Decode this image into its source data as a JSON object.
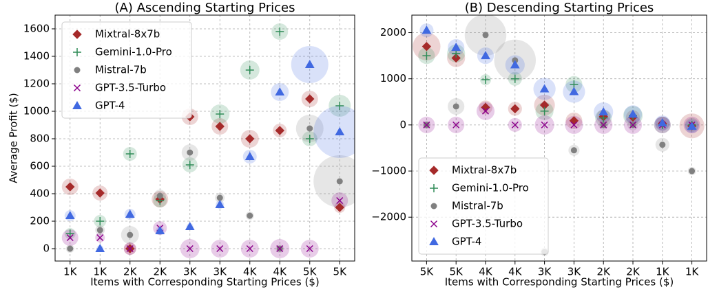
{
  "chart_data": [
    {
      "type": "scatter",
      "title": "(A) Ascending Starting Prices",
      "xlabel": "Items with Corresponding Starting Prices ($)",
      "ylabel": "Average Profit ($)",
      "categories": [
        "1K",
        "1K",
        "2K",
        "2K",
        "3K",
        "3K",
        "4K",
        "4K",
        "5K",
        "5K"
      ],
      "ylim": [
        -90,
        1700
      ],
      "yticks": [
        0,
        200,
        400,
        600,
        800,
        1000,
        1200,
        1400,
        1600
      ],
      "grid": true,
      "legend": "upper left",
      "series": [
        {
          "name": "Mixtral-8x7b",
          "color": "#a52a2a",
          "marker": "diamond",
          "values": [
            450,
            405,
            0,
            360,
            960,
            890,
            800,
            860,
            1090,
            300
          ],
          "errors": [
            60,
            55,
            45,
            60,
            60,
            60,
            65,
            50,
            60,
            40
          ]
        },
        {
          "name": "Gemini-1.0-Pro",
          "color": "#2e8b57",
          "marker": "plus",
          "values": [
            110,
            200,
            690,
            350,
            610,
            980,
            1300,
            1580,
            800,
            1040
          ],
          "errors": [
            40,
            45,
            50,
            50,
            55,
            70,
            70,
            60,
            55,
            80
          ]
        },
        {
          "name": "Mistral-7b",
          "color": "#808080",
          "marker": "circle",
          "values": [
            0,
            135,
            100,
            385,
            700,
            370,
            240,
            0,
            875,
            490
          ],
          "errors": [
            30,
            35,
            65,
            45,
            60,
            35,
            30,
            30,
            100,
            190
          ]
        },
        {
          "name": "GPT-3.5-Turbo",
          "color": "#8b008b",
          "marker": "x",
          "values": [
            80,
            80,
            0,
            150,
            0,
            0,
            0,
            0,
            0,
            350
          ],
          "errors": [
            60,
            35,
            45,
            50,
            70,
            65,
            65,
            70,
            65,
            60
          ]
        },
        {
          "name": "GPT-4",
          "color": "#4169e1",
          "marker": "triangle",
          "values": [
            240,
            0,
            250,
            130,
            160,
            320,
            670,
            1140,
            1340,
            850
          ],
          "errors": [
            40,
            25,
            40,
            30,
            25,
            30,
            50,
            65,
            135,
            190
          ]
        }
      ]
    },
    {
      "type": "scatter",
      "title": "(B) Descending Starting Prices",
      "xlabel": "Items with Corresponding Starting Prices ($)",
      "categories": [
        "5K",
        "5K",
        "4K",
        "4K",
        "3K",
        "3K",
        "2K",
        "2K",
        "1K",
        "1K"
      ],
      "ylim": [
        -2950,
        2380
      ],
      "yticks": [
        {
          "value": -2000,
          "label": "−2000"
        },
        {
          "value": -1000,
          "label": "−1000"
        },
        0,
        1000,
        2000
      ],
      "grid": true,
      "legend": "lower left",
      "series": [
        {
          "name": "Mixtral-8x7b",
          "color": "#a52a2a",
          "marker": "diamond",
          "values": [
            1700,
            1450,
            380,
            350,
            430,
            90,
            180,
            170,
            30,
            -20
          ],
          "errors": [
            300,
            195,
            150,
            150,
            225,
            180,
            150,
            150,
            150,
            270
          ]
        },
        {
          "name": "Gemini-1.0-Pro",
          "color": "#2e8b57",
          "marker": "plus",
          "values": [
            1500,
            1550,
            980,
            1000,
            300,
            880,
            150,
            200,
            0,
            0
          ],
          "errors": [
            180,
            195,
            120,
            150,
            195,
            180,
            180,
            210,
            180,
            150
          ]
        },
        {
          "name": "Mistral-7b",
          "color": "#808080",
          "marker": "circle",
          "values": [
            0,
            400,
            1950,
            1400,
            -2750,
            -550,
            0,
            0,
            -430,
            -1000
          ],
          "errors": [
            90,
            180,
            450,
            450,
            90,
            120,
            105,
            120,
            150,
            90
          ]
        },
        {
          "name": "GPT-3.5-Turbo",
          "color": "#8b008b",
          "marker": "x",
          "values": [
            0,
            0,
            300,
            0,
            0,
            0,
            0,
            0,
            0,
            0
          ],
          "errors": [
            180,
            180,
            195,
            150,
            210,
            195,
            195,
            195,
            180,
            180
          ]
        },
        {
          "name": "GPT-4",
          "color": "#4169e1",
          "marker": "triangle",
          "values": [
            2050,
            1680,
            1500,
            1300,
            780,
            720,
            280,
            230,
            40,
            -30
          ],
          "errors": [
            150,
            180,
            180,
            210,
            240,
            240,
            210,
            195,
            165,
            150
          ]
        }
      ]
    }
  ]
}
